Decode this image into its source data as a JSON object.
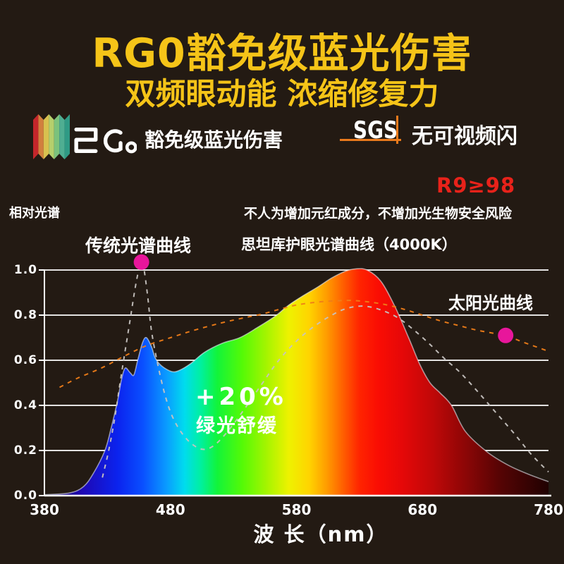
{
  "page_bg": "#231a13",
  "header": {
    "title": "RG0豁免级蓝光伤害",
    "subtitle": "双频眼动能 浓缩修复力",
    "accent_yellow": "#f5c418"
  },
  "cert_row": {
    "rgo_logo_text": "RGo",
    "rgo_stripe_colors": [
      "#c4262b",
      "#d1803e",
      "#d8c14f",
      "#b6cf6c",
      "#7cc27c",
      "#4fae92",
      "#2f9a85"
    ],
    "rgo_caption": "豁免级蓝光伤害",
    "sgs_label": "SGS",
    "sgs_caption": "无可视频闪",
    "sgs_accent": "#ea7a1c"
  },
  "claims": {
    "r9_badge": "R9≥98",
    "r9_color": "#e8221a",
    "safety_note": "不人为增加元红成分，不增加光生物安全风险"
  },
  "chart_data": {
    "type": "area",
    "ylabel": "相对光谱",
    "xlabel": "波 长（nm）",
    "xlim": [
      380,
      780
    ],
    "ylim": [
      0,
      1.0
    ],
    "x_ticks": [
      380,
      480,
      580,
      680,
      780
    ],
    "x_tick_labels": [
      "380",
      "480",
      "580",
      "680",
      "780"
    ],
    "y_ticks": [
      1.0,
      0.8,
      0.6,
      0.4,
      0.2,
      0.0
    ],
    "y_tick_labels": [
      "1.0",
      "0.8",
      "0.6",
      "0.4",
      "0.2",
      "0.0"
    ],
    "grid": "horizontal-white-lines",
    "annotations": {
      "traditional_label": "传统光谱曲线",
      "eyecare_label": "思坦库护眼光谱曲线（4000K）",
      "sun_label": "太阳光曲线",
      "green_boost_pct": "+20%",
      "green_boost_text": "绿光舒缓"
    },
    "series": [
      {
        "name": "思坦库护眼光谱曲线（4000K）",
        "style": "filled-spectrum-gradient",
        "points": [
          [
            380,
            0.004
          ],
          [
            400,
            0.012
          ],
          [
            411,
            0.04
          ],
          [
            419,
            0.1
          ],
          [
            428,
            0.2
          ],
          [
            433,
            0.3
          ],
          [
            438,
            0.42
          ],
          [
            441,
            0.51
          ],
          [
            444,
            0.565
          ],
          [
            448,
            0.545
          ],
          [
            451,
            0.535
          ],
          [
            454,
            0.6
          ],
          [
            458,
            0.68
          ],
          [
            461,
            0.7
          ],
          [
            465,
            0.66
          ],
          [
            468,
            0.61
          ],
          [
            473,
            0.575
          ],
          [
            481,
            0.55
          ],
          [
            487,
            0.555
          ],
          [
            496,
            0.585
          ],
          [
            507,
            0.635
          ],
          [
            521,
            0.675
          ],
          [
            535,
            0.7
          ],
          [
            549,
            0.745
          ],
          [
            563,
            0.795
          ],
          [
            574,
            0.845
          ],
          [
            585,
            0.885
          ],
          [
            597,
            0.925
          ],
          [
            608,
            0.965
          ],
          [
            619,
            0.995
          ],
          [
            627,
            1.005
          ],
          [
            636,
            1.0
          ],
          [
            647,
            0.95
          ],
          [
            658,
            0.84
          ],
          [
            669,
            0.7
          ],
          [
            678,
            0.58
          ],
          [
            686,
            0.5
          ],
          [
            694,
            0.455
          ],
          [
            703,
            0.4
          ],
          [
            714,
            0.285
          ],
          [
            731,
            0.195
          ],
          [
            748,
            0.135
          ],
          [
            764,
            0.095
          ],
          [
            780,
            0.062
          ]
        ]
      },
      {
        "name": "传统光谱曲线",
        "style": "dashed",
        "color": "#c7c3c0",
        "points": [
          [
            426,
            0.08
          ],
          [
            431,
            0.2
          ],
          [
            436,
            0.35
          ],
          [
            440,
            0.5
          ],
          [
            444,
            0.64
          ],
          [
            448,
            0.78
          ],
          [
            452,
            0.92
          ],
          [
            455,
            1.005
          ],
          [
            457,
            1.035
          ],
          [
            459,
            1.005
          ],
          [
            462,
            0.88
          ],
          [
            465,
            0.73
          ],
          [
            470,
            0.58
          ],
          [
            476,
            0.44
          ],
          [
            482,
            0.345
          ],
          [
            490,
            0.27
          ],
          [
            498,
            0.225
          ],
          [
            506,
            0.205
          ],
          [
            514,
            0.22
          ],
          [
            524,
            0.275
          ],
          [
            537,
            0.37
          ],
          [
            552,
            0.49
          ],
          [
            566,
            0.6
          ],
          [
            580,
            0.685
          ],
          [
            594,
            0.75
          ],
          [
            608,
            0.8
          ],
          [
            620,
            0.83
          ],
          [
            633,
            0.84
          ],
          [
            646,
            0.825
          ],
          [
            660,
            0.79
          ],
          [
            673,
            0.735
          ],
          [
            686,
            0.67
          ],
          [
            697,
            0.61
          ],
          [
            710,
            0.545
          ],
          [
            724,
            0.46
          ],
          [
            738,
            0.37
          ],
          [
            752,
            0.28
          ],
          [
            766,
            0.185
          ],
          [
            780,
            0.105
          ]
        ]
      },
      {
        "name": "太阳光曲线",
        "style": "dashed",
        "color": "#ef7d18",
        "points": [
          [
            392,
            0.48
          ],
          [
            406,
            0.52
          ],
          [
            425,
            0.565
          ],
          [
            444,
            0.62
          ],
          [
            461,
            0.665
          ],
          [
            480,
            0.7
          ],
          [
            497,
            0.73
          ],
          [
            520,
            0.765
          ],
          [
            540,
            0.79
          ],
          [
            553,
            0.805
          ],
          [
            566,
            0.825
          ],
          [
            580,
            0.845
          ],
          [
            595,
            0.857
          ],
          [
            610,
            0.863
          ],
          [
            624,
            0.865
          ],
          [
            638,
            0.858
          ],
          [
            652,
            0.845
          ],
          [
            666,
            0.825
          ],
          [
            680,
            0.8
          ],
          [
            694,
            0.775
          ],
          [
            708,
            0.755
          ],
          [
            722,
            0.735
          ],
          [
            736,
            0.72
          ],
          [
            746,
            0.71
          ],
          [
            760,
            0.68
          ],
          [
            780,
            0.64
          ]
        ]
      }
    ],
    "markers": [
      {
        "x": 457,
        "y": 1.035,
        "color": "#e8169b",
        "r": 11
      },
      {
        "x": 746,
        "y": 0.71,
        "color": "#e8169b",
        "r": 11
      }
    ],
    "spectrum_gradient": [
      [
        380,
        "#150457"
      ],
      [
        410,
        "#1e08b4"
      ],
      [
        438,
        "#0b23ee"
      ],
      [
        458,
        "#0a4fff"
      ],
      [
        477,
        "#0a9bff"
      ],
      [
        491,
        "#00dcee"
      ],
      [
        504,
        "#00f0a0"
      ],
      [
        517,
        "#12f43a"
      ],
      [
        537,
        "#55fa06"
      ],
      [
        557,
        "#a9f400"
      ],
      [
        574,
        "#eef200"
      ],
      [
        590,
        "#ffd400"
      ],
      [
        604,
        "#ff9c00"
      ],
      [
        617,
        "#ff5e00"
      ],
      [
        630,
        "#ff2400"
      ],
      [
        645,
        "#fa0d03"
      ],
      [
        663,
        "#e60808"
      ],
      [
        688,
        "#c00808"
      ],
      [
        713,
        "#8e0606"
      ],
      [
        742,
        "#550404"
      ],
      [
        780,
        "#200202"
      ]
    ]
  }
}
